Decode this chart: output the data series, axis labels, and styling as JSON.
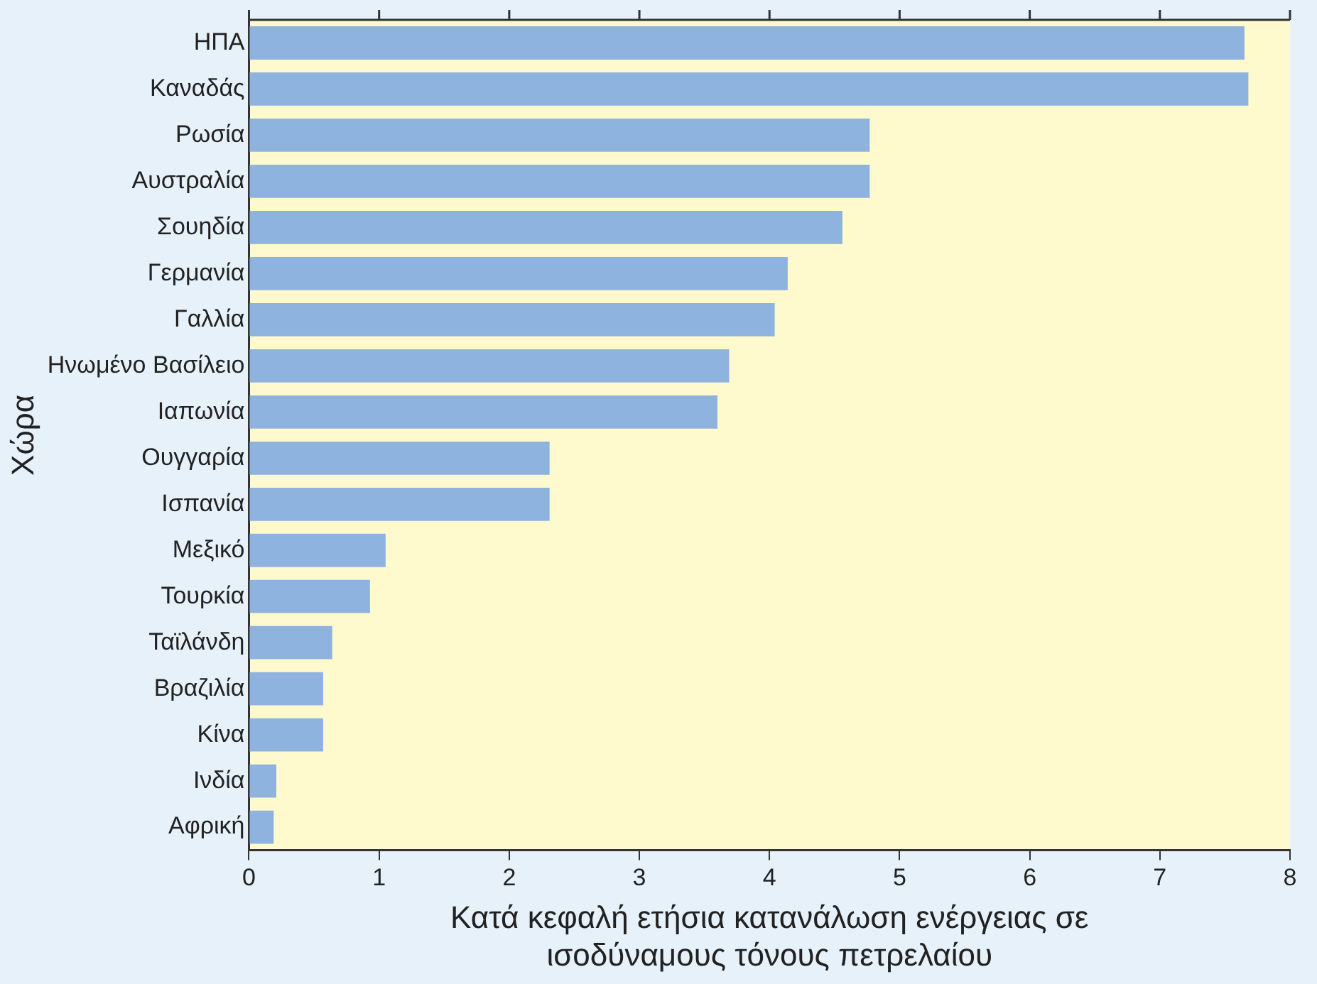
{
  "chart_data": {
    "type": "bar",
    "orientation": "horizontal",
    "xlabel": "Κατά κεφαλή ετήσια κατανάλωση ενέργειας σε ισοδύναμους τόνους πετρελαίου",
    "ylabel": "Χώρα",
    "categories": [
      "ΗΠΑ",
      "Καναδάς",
      "Ρωσία",
      "Αυστραλία",
      "Σουηδία",
      "Γερμανία",
      "Γαλλία",
      "Ηνωμένο Βασίλειο",
      "Ιαπωνία",
      "Ουγγαρία",
      "Ισπανία",
      "Μεξικό",
      "Τουρκία",
      "Ταϊλάνδη",
      "Βραζιλία",
      "Κίνα",
      "Ινδία",
      "Αφρική"
    ],
    "values": [
      7.65,
      7.68,
      4.77,
      4.77,
      4.56,
      4.14,
      4.04,
      3.69,
      3.6,
      2.31,
      2.31,
      1.05,
      0.93,
      0.64,
      0.57,
      0.57,
      0.21,
      0.19
    ],
    "color": "#8fb3df",
    "xlim": [
      0,
      8
    ],
    "xticks": [
      0,
      1,
      2,
      3,
      4,
      5,
      6,
      7,
      8
    ],
    "grid": false,
    "legend": false
  }
}
